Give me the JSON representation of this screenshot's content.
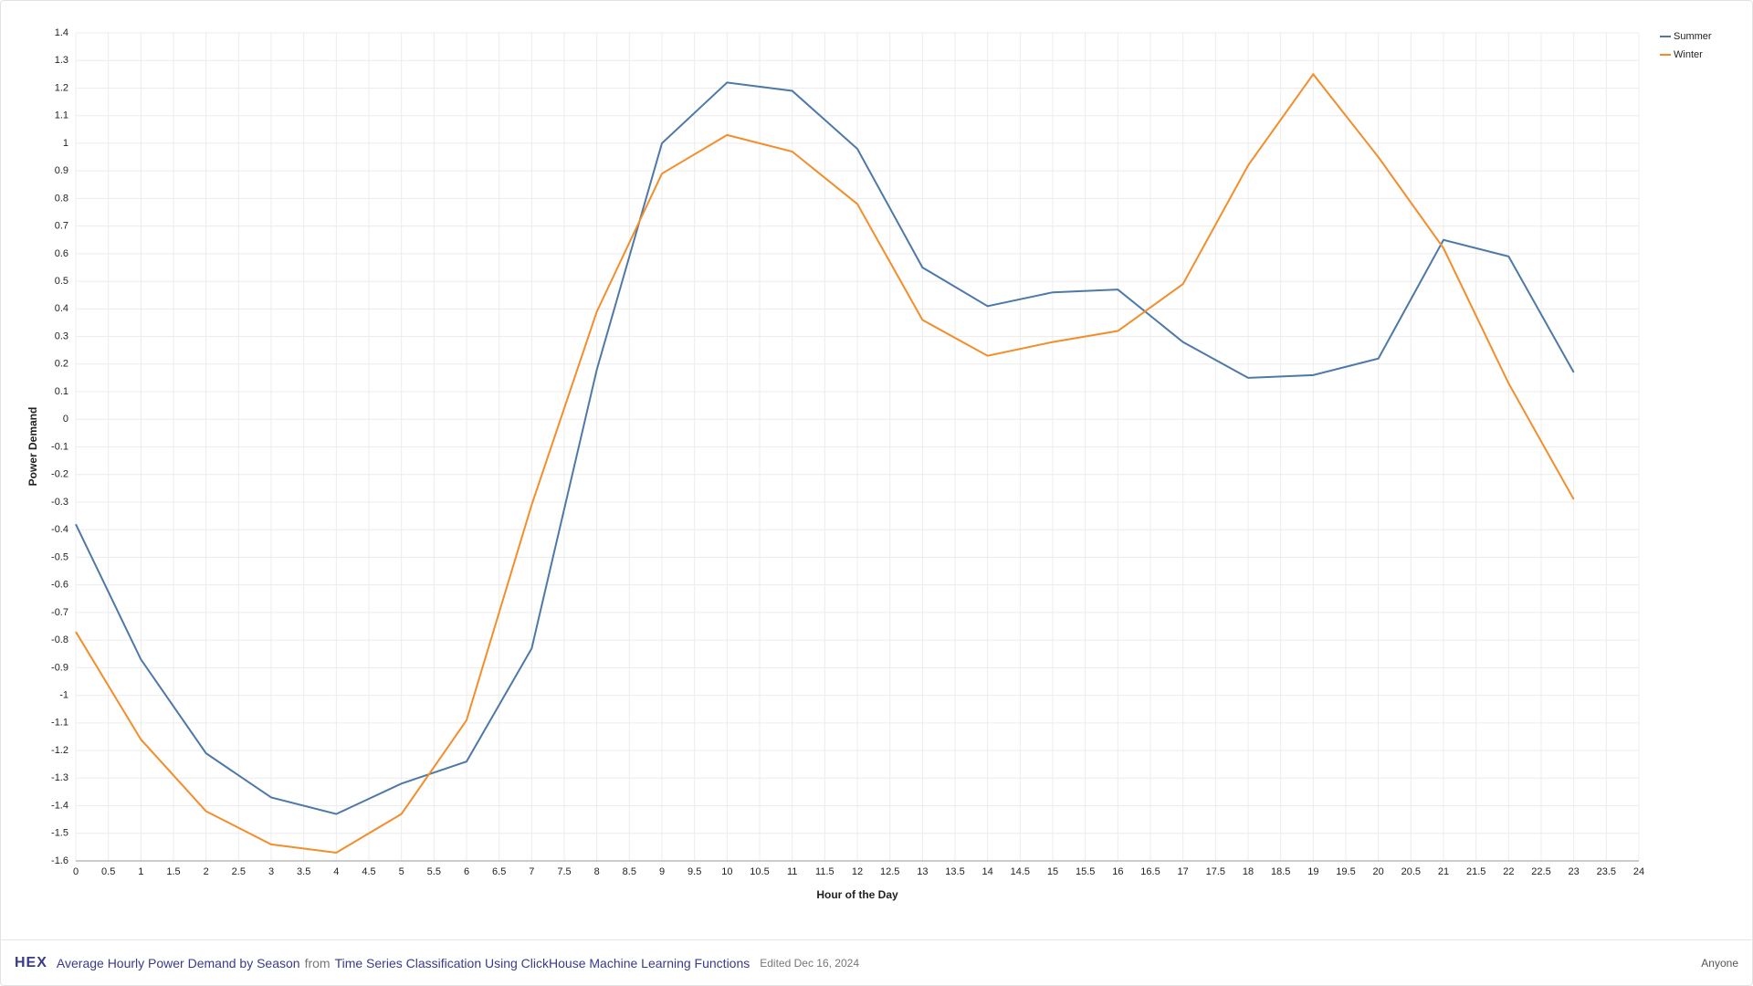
{
  "chart_data": {
    "type": "line",
    "x_label": "Hour of the Day",
    "y_label": "Power Demand",
    "x": [
      0,
      1,
      2,
      3,
      4,
      5,
      6,
      7,
      8,
      9,
      10,
      11,
      12,
      13,
      14,
      15,
      16,
      17,
      18,
      19,
      20,
      21,
      22,
      23
    ],
    "series": [
      {
        "name": "Summer",
        "color": "#4e79a7",
        "values": [
          -0.38,
          -0.87,
          -1.21,
          -1.37,
          -1.43,
          -1.32,
          -1.24,
          -0.83,
          0.18,
          1.0,
          1.22,
          1.19,
          0.98,
          0.55,
          0.41,
          0.46,
          0.47,
          0.28,
          0.15,
          0.16,
          0.22,
          0.65,
          0.59,
          0.17
        ]
      },
      {
        "name": "Winter",
        "color": "#f28e2b",
        "values": [
          -0.77,
          -1.16,
          -1.42,
          -1.54,
          -1.57,
          -1.43,
          -1.09,
          -0.31,
          0.39,
          0.89,
          1.03,
          0.97,
          0.78,
          0.36,
          0.23,
          0.28,
          0.32,
          0.49,
          0.92,
          1.25,
          0.95,
          0.62,
          0.13,
          -0.29
        ]
      }
    ],
    "xlim": [
      0,
      24
    ],
    "xticks": [
      0,
      0.5,
      1,
      1.5,
      2,
      2.5,
      3,
      3.5,
      4,
      4.5,
      5,
      5.5,
      6,
      6.5,
      7,
      7.5,
      8,
      8.5,
      9,
      9.5,
      10,
      10.5,
      11,
      11.5,
      12,
      12.5,
      13,
      13.5,
      14,
      14.5,
      15,
      15.5,
      16,
      16.5,
      17,
      17.5,
      18,
      18.5,
      19,
      19.5,
      20,
      20.5,
      21,
      21.5,
      22,
      22.5,
      23,
      23.5,
      24
    ],
    "ylim": [
      -1.6,
      1.4
    ],
    "yticks": [
      -1.6,
      -1.5,
      -1.4,
      -1.3,
      -1.2,
      -1.1,
      -1,
      -0.9,
      -0.8,
      -0.7,
      -0.6,
      -0.5,
      -0.4,
      -0.3,
      -0.2,
      -0.1,
      0,
      0.1,
      0.2,
      0.3,
      0.4,
      0.5,
      0.6,
      0.7,
      0.8,
      0.9,
      1,
      1.1,
      1.2,
      1.3,
      1.4
    ],
    "grid": true,
    "legend": "top-right"
  },
  "footer": {
    "logo": "HEX",
    "title": "Average Hourly Power Demand by Season",
    "from": "from",
    "project": "Time Series Classification Using ClickHouse Machine Learning Functions",
    "edited": "Edited Dec 16, 2024",
    "access": "Anyone"
  }
}
